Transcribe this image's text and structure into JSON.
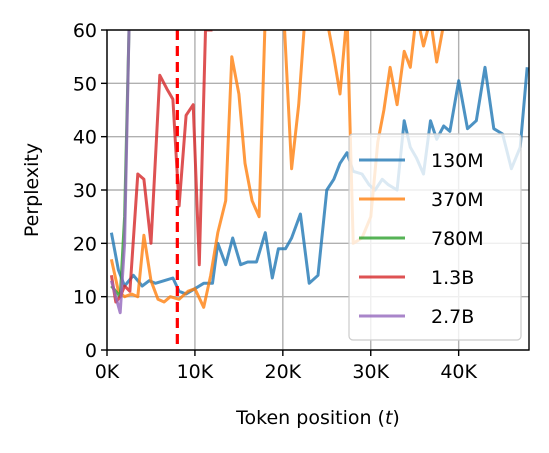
{
  "chart_data": {
    "type": "line",
    "xlabel_prefix": "Token position (",
    "xlabel_var": "t",
    "xlabel_suffix": ")",
    "ylabel": "Perplexity",
    "xlim": [
      0,
      48000
    ],
    "ylim": [
      0,
      60
    ],
    "xticks": [
      0,
      10000,
      20000,
      30000,
      40000
    ],
    "xtick_labels": [
      "0K",
      "10K",
      "20K",
      "30K",
      "40K"
    ],
    "yticks": [
      0,
      10,
      20,
      30,
      40,
      50,
      60
    ],
    "ytick_labels": [
      "0",
      "10",
      "20",
      "30",
      "40",
      "50",
      "60"
    ],
    "grid": true,
    "legend_position": "lower-right",
    "vline": {
      "x": 8000,
      "color": "#ff0000",
      "style": "dashed"
    },
    "series": [
      {
        "name": "130M",
        "color": "#1f77b4",
        "x": [
          500,
          1300,
          2000,
          3000,
          4000,
          4800,
          5500,
          6500,
          7500,
          8200,
          9000,
          10000,
          11000,
          11500,
          12000,
          12600,
          13500,
          14300,
          15200,
          16000,
          17000,
          18000,
          18800,
          19500,
          20300,
          21000,
          22000,
          23000,
          24000,
          25000,
          25800,
          26500,
          27300,
          28000,
          29000,
          29800,
          30500,
          31300,
          32000,
          33000,
          33800,
          34500,
          35200,
          36000,
          36800,
          37500,
          38300,
          39000,
          40000,
          41000,
          42000,
          43000,
          44000,
          45000,
          46000,
          47000,
          47800
        ],
        "y": [
          22,
          15,
          12,
          14,
          12,
          13,
          12.5,
          13,
          13.5,
          11,
          10.5,
          11.5,
          12.5,
          12.5,
          12.5,
          20,
          16,
          21,
          16,
          16.5,
          16.5,
          22,
          13.5,
          19,
          19,
          21,
          25.5,
          12.5,
          14,
          30,
          32,
          35,
          37,
          33.5,
          33,
          31,
          30,
          32,
          31,
          30,
          43,
          38,
          36,
          33,
          43,
          39.5,
          42,
          41,
          50.5,
          41.5,
          43,
          53,
          41.5,
          40.5,
          34,
          38,
          53
        ]
      },
      {
        "name": "370M",
        "color": "#ff7f0e",
        "x": [
          500,
          1300,
          2000,
          2800,
          3500,
          4200,
          5000,
          5800,
          6500,
          7200,
          8200,
          9200,
          10000,
          11000,
          11800,
          12600,
          13500,
          14200,
          15000,
          15700,
          16500,
          17300,
          18000,
          18800,
          19500,
          20200,
          21000,
          21800,
          22500,
          23500,
          24300,
          25000,
          25800,
          26500,
          27300,
          28000,
          29000,
          30000,
          30800,
          31500,
          32200,
          33000,
          33800,
          34500,
          35200,
          36000,
          36800,
          37500,
          38500,
          39500
        ],
        "y": [
          17,
          11,
          10,
          10.5,
          10,
          21.5,
          13,
          9.5,
          9,
          10,
          9.5,
          11,
          11.5,
          8,
          14,
          22,
          28,
          55,
          48,
          35,
          28,
          25,
          63,
          61,
          63,
          60,
          34,
          46,
          62,
          63,
          63,
          62,
          55,
          48,
          63,
          20,
          21,
          25,
          39,
          45,
          53,
          46,
          56,
          53,
          63,
          57,
          62,
          54,
          63,
          62
        ]
      },
      {
        "name": "780M",
        "color": "#2ca02c",
        "x": [
          500,
          1000,
          1500,
          2000,
          2500
        ],
        "y": [
          12,
          11,
          10,
          25,
          60
        ]
      },
      {
        "name": "1.3B",
        "color": "#d62728",
        "x": [
          500,
          1000,
          1500,
          2000,
          2600,
          3500,
          4200,
          5000,
          6000,
          6800,
          7500,
          8200,
          9000,
          9800,
          10500,
          11200,
          12000
        ],
        "y": [
          14,
          9,
          10,
          12,
          11,
          33,
          32,
          20,
          51.5,
          49,
          47,
          27,
          44,
          46,
          16,
          60,
          60
        ]
      },
      {
        "name": "2.7B",
        "color": "#9467bd",
        "x": [
          500,
          1000,
          1500,
          2000,
          2500
        ],
        "y": [
          13,
          10,
          7,
          20,
          60
        ]
      }
    ]
  }
}
